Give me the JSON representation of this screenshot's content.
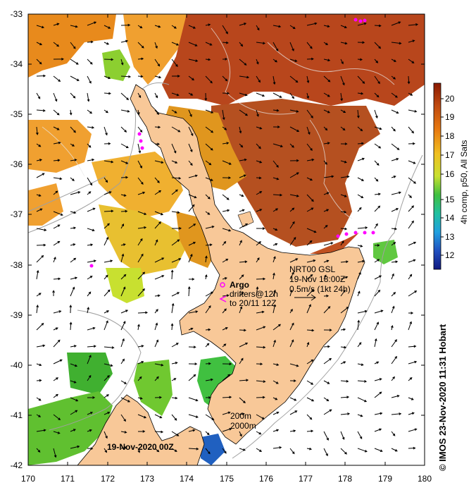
{
  "map": {
    "x_ticks": [
      "170",
      "171",
      "172",
      "173",
      "174",
      "175",
      "176",
      "177",
      "178",
      "179",
      "180"
    ],
    "y_ticks": [
      "-33",
      "-34",
      "-35",
      "-36",
      "-37",
      "-38",
      "-39",
      "-40",
      "-41",
      "-42"
    ],
    "date_label": "19-Nov-2020 00Z",
    "depth_labels": [
      "200m",
      "2000m"
    ],
    "argo": {
      "title": "Argo",
      "line1": "drifters@12h",
      "line2": "to 20/11 12Z"
    },
    "current": {
      "source": "NRT00 GSL",
      "time": "19-Nov 18:00Z",
      "scale": "0.5m/s (1kt 24h)"
    }
  },
  "colorbar": {
    "ticks": [
      "20",
      "19",
      "18",
      "17",
      "16",
      "15",
      "14",
      "13",
      "12"
    ],
    "label": "4h comp, p50, All Sats"
  },
  "credit": "© IMOS 23-Nov-2020 11:31 Hobart",
  "colors": {
    "land": "#f8c898",
    "warm": "#b8461c",
    "argo": "#ff00ff"
  }
}
